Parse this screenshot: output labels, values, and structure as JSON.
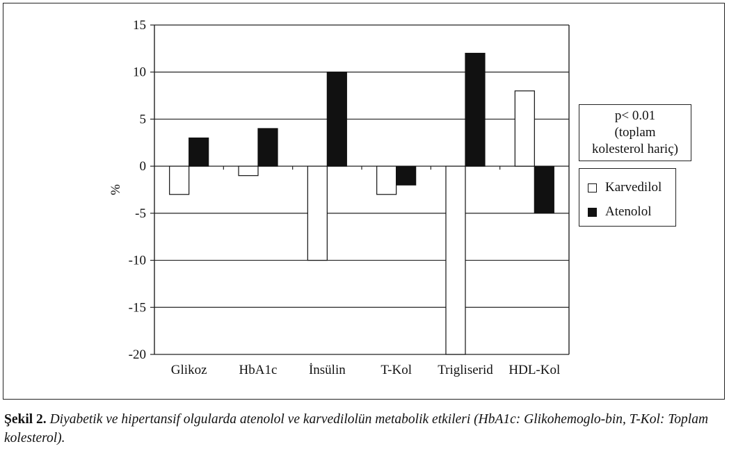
{
  "chart_data": {
    "type": "bar",
    "categories": [
      "Glikoz",
      "HbA1c",
      "İnsülin",
      "T-Kol",
      "Trigliserid",
      "HDL-Kol"
    ],
    "series": [
      {
        "name": "Karvedilol",
        "values": [
          -3,
          -1,
          -10,
          -3,
          -20,
          8
        ],
        "color": "#ffffff"
      },
      {
        "name": "Atenolol",
        "values": [
          3,
          4,
          10,
          -2,
          12,
          -5
        ],
        "color": "#111111"
      }
    ],
    "ylabel": "%",
    "ylim": [
      -20,
      15
    ],
    "yticks": [
      15,
      10,
      5,
      0,
      -5,
      -10,
      -15,
      -20
    ],
    "grid": true,
    "legend_position": "right",
    "annotation": [
      "p< 0.01",
      "(toplam",
      "kolesterol hariç)"
    ]
  },
  "caption": {
    "label": "Şekil 2.",
    "text": " Diyabetik ve hipertansif olgularda atenolol ve karvedilolün metabolik etkileri (HbA1c: Glikohemoglo-bin, T-Kol: Toplam kolesterol)."
  }
}
